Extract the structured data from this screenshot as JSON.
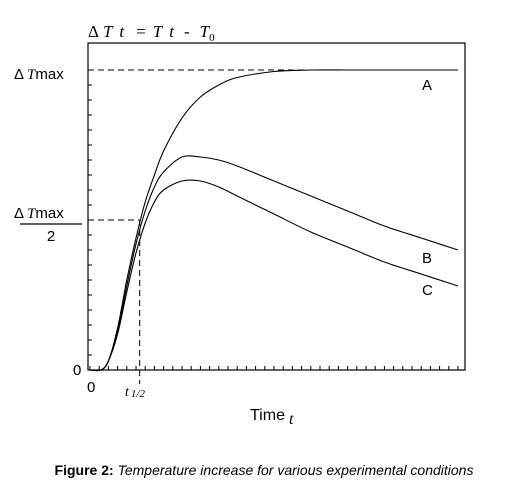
{
  "chart_data": {
    "type": "line",
    "title": "ΔT t = T t - T0",
    "title_parts": {
      "delta": "Δ",
      "t1": "T",
      "t2": "t",
      "eq": "=",
      "t3": "T",
      "t4": "t",
      "minus": "-",
      "t5": "T",
      "sub0": "0"
    },
    "xlabel": "Time",
    "xlabel_var": "t",
    "x_tick_labels": {
      "origin": "0",
      "t_half_main": "t",
      "t_half_sub": "1/2"
    },
    "y_tick_labels": {
      "zero": "0",
      "max": {
        "delta": "Δ",
        "var": "T",
        "suffix": "max"
      },
      "half": {
        "delta": "Δ",
        "var": "T",
        "suffix": "max",
        "denominator": "2"
      }
    },
    "xlim": [
      0,
      10
    ],
    "ylim": [
      0,
      1.0
    ],
    "grid": false,
    "legend": "none",
    "reference_lines": {
      "y_max": 1.0,
      "y_half": 0.5,
      "x_half": 1.35
    },
    "series": [
      {
        "name": "A",
        "x": [
          0,
          0.3,
          0.5,
          0.75,
          1.0,
          1.25,
          1.5,
          1.75,
          2.0,
          2.5,
          3.0,
          3.5,
          4.0,
          5.0,
          6.0,
          7.0,
          8.0,
          9.0,
          10.0
        ],
        "y": [
          0,
          0.0,
          0.03,
          0.14,
          0.3,
          0.44,
          0.56,
          0.65,
          0.73,
          0.84,
          0.91,
          0.95,
          0.975,
          0.995,
          1.0,
          1.0,
          1.0,
          1.0,
          1.0
        ]
      },
      {
        "name": "B",
        "x": [
          0,
          0.3,
          0.5,
          0.75,
          1.0,
          1.25,
          1.5,
          1.75,
          2.0,
          2.5,
          3.0,
          3.5,
          4.0,
          5.0,
          6.0,
          7.0,
          8.0,
          9.0,
          10.0
        ],
        "y": [
          0,
          0.0,
          0.03,
          0.13,
          0.28,
          0.42,
          0.53,
          0.61,
          0.66,
          0.71,
          0.71,
          0.7,
          0.68,
          0.63,
          0.58,
          0.53,
          0.48,
          0.44,
          0.4
        ]
      },
      {
        "name": "C",
        "x": [
          0,
          0.3,
          0.5,
          0.75,
          1.0,
          1.25,
          1.5,
          1.75,
          2.0,
          2.5,
          3.0,
          3.5,
          4.0,
          5.0,
          6.0,
          7.0,
          8.0,
          9.0,
          10.0
        ],
        "y": [
          0,
          0.0,
          0.03,
          0.12,
          0.26,
          0.39,
          0.49,
          0.56,
          0.6,
          0.63,
          0.63,
          0.61,
          0.58,
          0.52,
          0.46,
          0.41,
          0.36,
          0.32,
          0.28
        ]
      }
    ]
  },
  "caption": {
    "label": "Figure 2:",
    "text": "Temperature increase for various experimental conditions"
  }
}
